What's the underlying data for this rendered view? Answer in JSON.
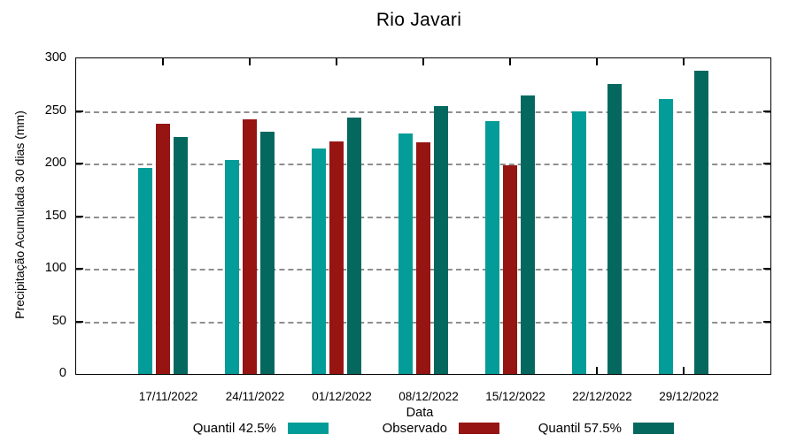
{
  "chart_data": {
    "type": "bar",
    "title": "Rio Javari",
    "ylabel": "Precipitação Acumulada 30 dias (mm)",
    "xlabel": "Data",
    "ylim": [
      0,
      300
    ],
    "ytick_step": 50,
    "yticks": [
      0,
      50,
      100,
      150,
      200,
      250,
      300
    ],
    "grid": true,
    "legend_position": "bottom",
    "categories": [
      "17/11/2022",
      "24/11/2022",
      "01/12/2022",
      "08/12/2022",
      "15/12/2022",
      "22/12/2022",
      "29/12/2022"
    ],
    "series": [
      {
        "name": "Quantil 42.5%",
        "color": "#049C98",
        "values": [
          196,
          203,
          214,
          229,
          240,
          250,
          261
        ]
      },
      {
        "name": "Observado",
        "color": "#961412",
        "values": [
          238,
          242,
          221,
          220,
          198,
          null,
          null
        ]
      },
      {
        "name": "Quantil 57.5%",
        "color": "#05685F",
        "values": [
          225,
          230,
          244,
          255,
          265,
          276,
          288
        ]
      }
    ]
  }
}
